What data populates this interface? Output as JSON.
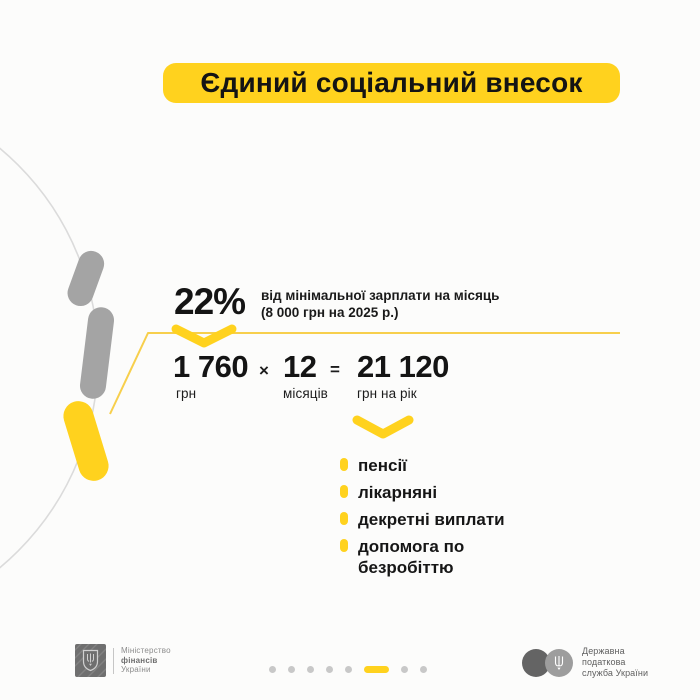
{
  "title": {
    "text": "Єдиний соціальний внесок"
  },
  "rate": {
    "value": "22%",
    "desc_line1": "від мінімальної зарплати на місяць",
    "desc_line2": "(8 000 грн на 2025 р.)"
  },
  "formula": {
    "monthly_amount": "1 760",
    "monthly_unit": "грн",
    "times_sign": "×",
    "months_count": "12",
    "months_unit": "місяців",
    "equals_sign": "=",
    "yearly_amount": "21 120",
    "yearly_unit": "грн на рік"
  },
  "benefits": [
    "пенсії",
    "лікарняні",
    "декретні виплати",
    "допомога по безробіттю"
  ],
  "pagination": {
    "total": 8,
    "active_index": 5
  },
  "footer": {
    "ministry": {
      "line1": "Міністерство",
      "line2": "фінансів",
      "line3": "України"
    },
    "tax": {
      "line1": "Державна",
      "line2": "податкова",
      "line3": "служба України"
    }
  },
  "colors": {
    "accent_yellow": "#FFD21E",
    "thin_line_yellow": "#F7CF4C",
    "dark_text": "#141414",
    "gray_capsule": "#A4A4A4",
    "arc_gray": "#DBDBDB",
    "dot_gray": "#C8C8C8"
  }
}
